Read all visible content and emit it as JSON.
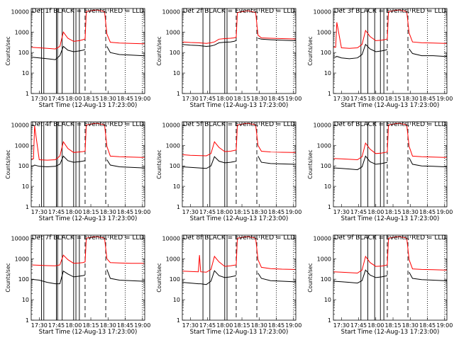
{
  "figure": {
    "xlabel": "Start Time (12-Aug-13 17:23:00)",
    "ylabel": "Counts/sec",
    "x_tick_labels": [
      "17:30",
      "17:45",
      "18:00",
      "18:15",
      "18:30",
      "18:45",
      "19:00"
    ],
    "y_tick_labels": [
      "1",
      "10",
      "100",
      "1000",
      "10000"
    ],
    "series_colors": {
      "events": "#000000",
      "lld": "#ff0000"
    },
    "legend_text": "BLACK = Events, RED = LLD"
  },
  "chart_data": [
    {
      "type": "line",
      "title": "Det 1f BLACK = Events, RED = LLD",
      "x": [
        "17:23",
        "17:30",
        "17:37",
        "17:44",
        "17:48",
        "17:51",
        "17:55",
        "18:00",
        "18:05",
        "18:08",
        "18:10",
        "18:11",
        "18:20",
        "18:27",
        "18:29",
        "18:32",
        "18:40",
        "18:50",
        "19:00",
        "19:02"
      ],
      "ylim": [
        1,
        10000
      ],
      "yscale": "log",
      "grid": false,
      "series": [
        {
          "name": "Events",
          "color": "#000000",
          "values": [
            60,
            55,
            50,
            45,
            70,
            200,
            130,
            110,
            120,
            130,
            140,
            null,
            null,
            null,
            200,
            100,
            80,
            75,
            70,
            70
          ]
        },
        {
          "name": "LLD",
          "color": "#ff0000",
          "values": [
            180,
            170,
            160,
            150,
            200,
            1000,
            500,
            350,
            380,
            420,
            460,
            10000,
            12000,
            10000,
            800,
            320,
            290,
            280,
            270,
            270
          ]
        }
      ],
      "vlines": [
        "17:32",
        "17:34",
        "17:45",
        "17:46",
        "17:50",
        "18:00",
        "18:02",
        "18:05"
      ],
      "dashed_vlines": [
        "18:10",
        "18:28"
      ],
      "dotted_vlines": [
        "18:45",
        "19:00"
      ]
    },
    {
      "type": "line",
      "title": "Det 2f BLACK = Events, RED = LLD",
      "x": [
        "17:23",
        "17:30",
        "17:37",
        "17:44",
        "17:48",
        "17:51",
        "17:55",
        "18:00",
        "18:05",
        "18:08",
        "18:10",
        "18:11",
        "18:20",
        "18:27",
        "18:29",
        "18:32",
        "18:40",
        "18:50",
        "19:00",
        "19:02"
      ],
      "ylim": [
        1,
        10000
      ],
      "yscale": "log",
      "grid": false,
      "series": [
        {
          "name": "Events",
          "color": "#000000",
          "values": [
            250,
            230,
            220,
            200,
            210,
            230,
            300,
            320,
            330,
            350,
            380,
            null,
            null,
            null,
            500,
            450,
            420,
            400,
            380,
            380
          ]
        },
        {
          "name": "LLD",
          "color": "#ff0000",
          "values": [
            330,
            310,
            300,
            280,
            300,
            330,
            450,
            480,
            500,
            520,
            560,
            9000,
            11000,
            9000,
            700,
            520,
            500,
            480,
            460,
            460
          ]
        }
      ],
      "vlines": [
        "17:41",
        "17:47",
        "18:00",
        "18:02"
      ],
      "dashed_vlines": [
        "18:10",
        "18:28"
      ],
      "dotted_vlines": [
        "18:45",
        "19:00"
      ]
    },
    {
      "type": "line",
      "title": "Det 3f BLACK = Events, RED = LLD",
      "x": [
        "17:23",
        "17:25",
        "17:26",
        "17:30",
        "17:37",
        "17:44",
        "17:48",
        "17:51",
        "17:55",
        "18:00",
        "18:05",
        "18:08",
        "18:10",
        "18:11",
        "18:20",
        "18:27",
        "18:29",
        "18:32",
        "18:40",
        "18:50",
        "19:00",
        "19:02"
      ],
      "ylim": [
        1,
        10000
      ],
      "yscale": "log",
      "grid": false,
      "series": [
        {
          "name": "Events",
          "color": "#000000",
          "values": [
            60,
            60,
            65,
            55,
            50,
            55,
            80,
            250,
            150,
            110,
            120,
            130,
            140,
            null,
            null,
            null,
            150,
            90,
            70,
            70,
            65,
            65
          ]
        },
        {
          "name": "LLD",
          "color": "#ff0000",
          "values": [
            180,
            180,
            3000,
            170,
            160,
            170,
            250,
            1200,
            600,
            380,
            400,
            430,
            460,
            10000,
            12000,
            10000,
            900,
            330,
            300,
            290,
            280,
            280
          ]
        }
      ],
      "vlines": [
        "17:47",
        "17:53",
        "17:59",
        "18:04",
        "18:07"
      ],
      "dashed_vlines": [
        "18:10",
        "18:28"
      ],
      "dotted_vlines": [
        "18:45",
        "19:00"
      ]
    },
    {
      "type": "line",
      "title": "Det 4f BLACK = Events, RED = LLD",
      "x": [
        "17:23",
        "17:25",
        "17:26",
        "17:30",
        "17:37",
        "17:44",
        "17:48",
        "17:51",
        "17:55",
        "18:00",
        "18:05",
        "18:08",
        "18:10",
        "18:11",
        "18:20",
        "18:27",
        "18:29",
        "18:32",
        "18:40",
        "18:50",
        "19:00",
        "19:02"
      ],
      "ylim": [
        1,
        10000
      ],
      "yscale": "log",
      "grid": false,
      "series": [
        {
          "name": "Events",
          "color": "#000000",
          "values": [
            100,
            100,
            110,
            95,
            90,
            95,
            120,
            300,
            180,
            150,
            160,
            170,
            180,
            null,
            null,
            null,
            200,
            110,
            90,
            85,
            80,
            80
          ]
        },
        {
          "name": "LLD",
          "color": "#ff0000",
          "values": [
            220,
            220,
            9000,
            200,
            190,
            200,
            300,
            1500,
            700,
            450,
            480,
            500,
            520,
            10000,
            12000,
            10000,
            900,
            300,
            280,
            270,
            260,
            260
          ]
        }
      ],
      "vlines": [
        "17:32",
        "17:34",
        "17:45",
        "17:46",
        "17:50",
        "18:00",
        "18:02",
        "18:05"
      ],
      "dashed_vlines": [
        "18:10",
        "18:28"
      ],
      "dotted_vlines": [
        "18:45",
        "19:00"
      ]
    },
    {
      "type": "line",
      "title": "Det 5f BLACK = Events, RED = LLD",
      "x": [
        "17:23",
        "17:30",
        "17:37",
        "17:44",
        "17:48",
        "17:51",
        "17:55",
        "18:00",
        "18:05",
        "18:08",
        "18:10",
        "18:11",
        "18:20",
        "18:27",
        "18:29",
        "18:32",
        "18:40",
        "18:50",
        "19:00",
        "19:02"
      ],
      "ylim": [
        1,
        10000
      ],
      "yscale": "log",
      "grid": false,
      "series": [
        {
          "name": "Events",
          "color": "#000000",
          "values": [
            90,
            85,
            80,
            75,
            100,
            280,
            170,
            140,
            150,
            160,
            170,
            null,
            null,
            null,
            300,
            150,
            130,
            125,
            120,
            120
          ]
        },
        {
          "name": "LLD",
          "color": "#ff0000",
          "values": [
            350,
            330,
            320,
            310,
            400,
            1500,
            800,
            500,
            520,
            560,
            600,
            10000,
            12000,
            10000,
            1000,
            520,
            480,
            460,
            450,
            450
          ]
        }
      ],
      "vlines": [
        "17:41",
        "17:47",
        "18:00",
        "18:02"
      ],
      "dashed_vlines": [
        "18:10",
        "18:28"
      ],
      "dotted_vlines": [
        "18:45",
        "19:00"
      ]
    },
    {
      "type": "line",
      "title": "Det 6f BLACK = Events, RED = LLD",
      "x": [
        "17:23",
        "17:30",
        "17:37",
        "17:44",
        "17:48",
        "17:51",
        "17:55",
        "18:00",
        "18:05",
        "18:08",
        "18:10",
        "18:11",
        "18:20",
        "18:27",
        "18:29",
        "18:32",
        "18:40",
        "18:50",
        "19:00",
        "19:02"
      ],
      "ylim": [
        1,
        10000
      ],
      "yscale": "log",
      "grid": false,
      "series": [
        {
          "name": "Events",
          "color": "#000000",
          "values": [
            80,
            75,
            70,
            65,
            90,
            300,
            160,
            120,
            130,
            140,
            150,
            null,
            null,
            null,
            250,
            120,
            100,
            95,
            90,
            90
          ]
        },
        {
          "name": "LLD",
          "color": "#ff0000",
          "values": [
            230,
            220,
            210,
            200,
            280,
            1300,
            650,
            400,
            420,
            450,
            480,
            10000,
            12000,
            10000,
            900,
            300,
            280,
            270,
            260,
            260
          ]
        }
      ],
      "vlines": [
        "17:47",
        "17:53",
        "17:59",
        "18:04",
        "18:07"
      ],
      "dashed_vlines": [
        "18:10",
        "18:28"
      ],
      "dotted_vlines": [
        "18:45",
        "19:00"
      ]
    },
    {
      "type": "line",
      "title": "Det 7f BLACK = Events, RED = LLD",
      "x": [
        "17:23",
        "17:30",
        "17:37",
        "17:44",
        "17:48",
        "17:51",
        "17:55",
        "18:00",
        "18:05",
        "18:08",
        "18:10",
        "18:11",
        "18:20",
        "18:27",
        "18:29",
        "18:32",
        "18:40",
        "18:50",
        "19:00",
        "19:02"
      ],
      "ylim": [
        1,
        10000
      ],
      "yscale": "log",
      "grid": false,
      "series": [
        {
          "name": "Events",
          "color": "#000000",
          "values": [
            100,
            90,
            70,
            60,
            60,
            250,
            180,
            130,
            140,
            150,
            160,
            null,
            null,
            null,
            300,
            110,
            90,
            85,
            80,
            80
          ]
        },
        {
          "name": "LLD",
          "color": "#ff0000",
          "values": [
            500,
            480,
            460,
            450,
            500,
            1500,
            900,
            600,
            620,
            650,
            700,
            10000,
            12000,
            10000,
            1000,
            650,
            620,
            600,
            600,
            600
          ]
        }
      ],
      "vlines": [
        "17:32",
        "17:34",
        "17:45",
        "17:46",
        "17:50",
        "18:00",
        "18:02",
        "18:05"
      ],
      "dashed_vlines": [
        "18:10",
        "18:28"
      ],
      "dotted_vlines": [
        "18:45",
        "19:00"
      ]
    },
    {
      "type": "line",
      "title": "Det 8f BLACK = Events, RED = LLD",
      "x": [
        "17:23",
        "17:30",
        "17:37",
        "17:38",
        "17:39",
        "17:44",
        "17:48",
        "17:51",
        "17:55",
        "18:00",
        "18:05",
        "18:08",
        "18:10",
        "18:11",
        "18:20",
        "18:27",
        "18:29",
        "18:32",
        "18:40",
        "18:50",
        "19:00",
        "19:02"
      ],
      "ylim": [
        1,
        10000
      ],
      "yscale": "log",
      "grid": false,
      "series": [
        {
          "name": "Events",
          "color": "#000000",
          "values": [
            70,
            65,
            60,
            60,
            60,
            55,
            80,
            260,
            150,
            120,
            130,
            140,
            150,
            null,
            null,
            null,
            200,
            110,
            85,
            80,
            75,
            75
          ]
        },
        {
          "name": "LLD",
          "color": "#ff0000",
          "values": [
            250,
            240,
            230,
            1500,
            230,
            220,
            300,
            1300,
            700,
            420,
            450,
            480,
            500,
            10000,
            12000,
            10000,
            900,
            380,
            330,
            310,
            300,
            300
          ]
        }
      ],
      "vlines": [
        "17:41",
        "17:47",
        "18:00",
        "18:02"
      ],
      "dashed_vlines": [
        "18:10",
        "18:28"
      ],
      "dotted_vlines": [
        "18:45",
        "19:00"
      ]
    },
    {
      "type": "line",
      "title": "Det 9f BLACK = Events, RED = LLD",
      "x": [
        "17:23",
        "17:30",
        "17:37",
        "17:44",
        "17:48",
        "17:51",
        "17:55",
        "18:00",
        "18:05",
        "18:08",
        "18:10",
        "18:11",
        "18:20",
        "18:27",
        "18:29",
        "18:32",
        "18:40",
        "18:50",
        "19:00",
        "19:02"
      ],
      "ylim": [
        1,
        10000
      ],
      "yscale": "log",
      "grid": false,
      "series": [
        {
          "name": "Events",
          "color": "#000000",
          "values": [
            80,
            75,
            70,
            65,
            85,
            280,
            160,
            120,
            130,
            140,
            150,
            null,
            null,
            null,
            220,
            110,
            95,
            90,
            85,
            85
          ]
        },
        {
          "name": "LLD",
          "color": "#ff0000",
          "values": [
            230,
            220,
            210,
            200,
            280,
            1300,
            650,
            420,
            440,
            470,
            500,
            10000,
            12000,
            10000,
            900,
            320,
            300,
            290,
            280,
            280
          ]
        }
      ],
      "vlines": [
        "17:47",
        "17:53",
        "17:59",
        "18:04",
        "18:07"
      ],
      "dashed_vlines": [
        "18:10",
        "18:28"
      ],
      "dotted_vlines": [
        "18:45",
        "19:00"
      ]
    }
  ]
}
